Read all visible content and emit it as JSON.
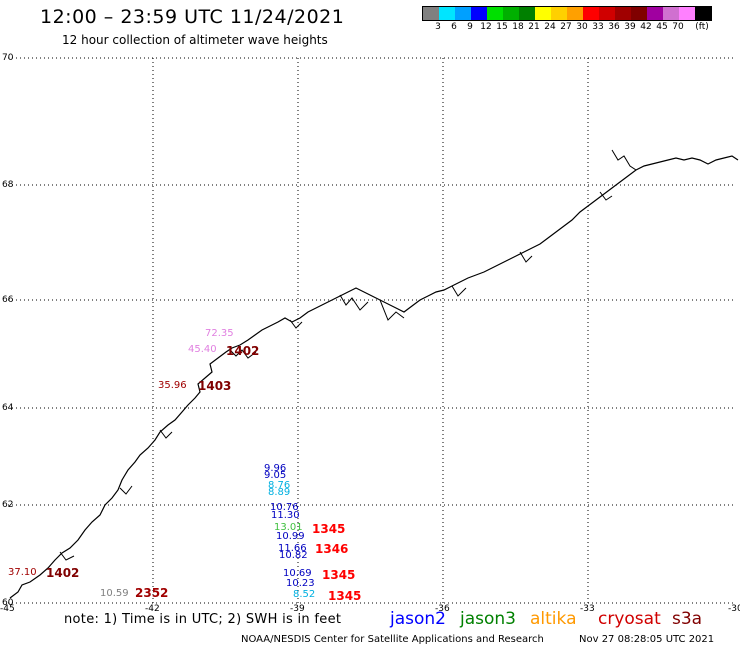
{
  "header": {
    "title": "12:00 – 23:59 UTC 11/24/2021",
    "subtitle": "12 hour collection of altimeter wave heights"
  },
  "colorbar": {
    "colors": [
      "#808080",
      "#00e5ff",
      "#00a0ff",
      "#0000ff",
      "#00e000",
      "#00b000",
      "#008000",
      "#ffff00",
      "#ffd000",
      "#ffa000",
      "#ff0000",
      "#d00000",
      "#a00000",
      "#800000",
      "#a000a0",
      "#d070d0",
      "#ff80ff",
      "#000000"
    ],
    "labels": [
      "3",
      "6",
      "9",
      "12",
      "15",
      "18",
      "21",
      "24",
      "27",
      "30",
      "33",
      "36",
      "39",
      "42",
      "45",
      "70",
      "(ft)"
    ]
  },
  "axes": {
    "lat_labels": [
      "70",
      "68",
      "66",
      "64",
      "62",
      "60"
    ],
    "lon_labels": [
      "-45",
      "-42",
      "-39",
      "-36",
      "-33",
      "-30"
    ]
  },
  "observations": [
    {
      "text": "72.35",
      "color": "#e080e0"
    },
    {
      "text": "45.40",
      "color": "#e080e0"
    },
    {
      "text": "1402",
      "color": "#800000"
    },
    {
      "text": "35.96",
      "color": "#a00000"
    },
    {
      "text": "1403",
      "color": "#800000"
    },
    {
      "text": "9.96",
      "color": "#0000c0"
    },
    {
      "text": "9.05",
      "color": "#0000c0"
    },
    {
      "text": "8.76",
      "color": "#00b0e0"
    },
    {
      "text": "8.89",
      "color": "#00b0e0"
    },
    {
      "text": "10.76",
      "color": "#0000c0"
    },
    {
      "text": "11.30",
      "color": "#0000c0"
    },
    {
      "text": "13.01",
      "color": "#40c040"
    },
    {
      "text": "10.99",
      "color": "#0000c0"
    },
    {
      "text": "1345",
      "color": "#ff0000"
    },
    {
      "text": "11.66",
      "color": "#0000c0"
    },
    {
      "text": "10.82",
      "color": "#0000c0"
    },
    {
      "text": "1346",
      "color": "#ff0000"
    },
    {
      "text": "10.69",
      "color": "#0000c0"
    },
    {
      "text": "10.23",
      "color": "#0000c0"
    },
    {
      "text": "1345",
      "color": "#ff0000"
    },
    {
      "text": "8.52",
      "color": "#00b0e0"
    },
    {
      "text": "1345",
      "color": "#ff0000"
    },
    {
      "text": "37.10",
      "color": "#a00000"
    },
    {
      "text": "1402",
      "color": "#800000"
    },
    {
      "text": "10.59",
      "color": "#808080"
    },
    {
      "text": "2352",
      "color": "#a00000"
    }
  ],
  "footer": {
    "note": "note:  1) Time is in UTC;  2) SWH is in feet",
    "legend": [
      {
        "label": "jason2",
        "color": "#0000ff"
      },
      {
        "label": "jason3",
        "color": "#008000"
      },
      {
        "label": "altika",
        "color": "#ff9900"
      },
      {
        "label": "cryosat",
        "color": "#d00000"
      },
      {
        "label": "s3a",
        "color": "#800000"
      }
    ],
    "credit": "NOAA/NESDIS Center for Satellite Applications and Research",
    "timestamp": "Nov 27 08:28:05 UTC 2021"
  }
}
